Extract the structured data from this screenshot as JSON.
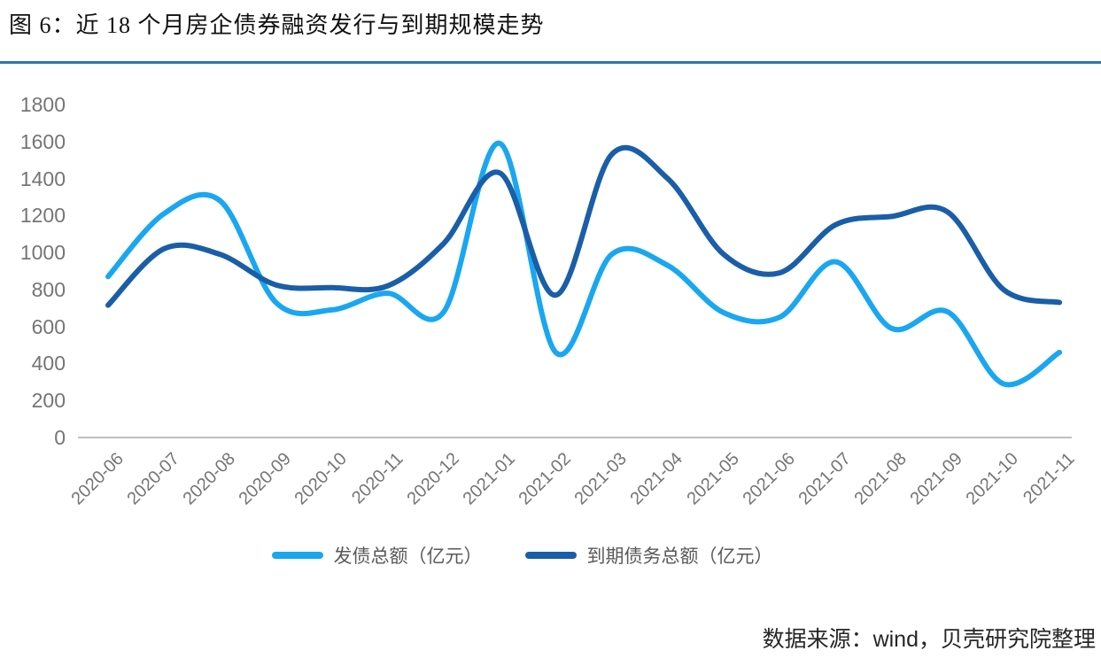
{
  "title": "图 6：近 18 个月房企债券融资发行与到期规模走势",
  "source": "数据来源：wind，贝壳研究院整理",
  "accent_rule_color": "#2E74B5",
  "chart_data": {
    "type": "line",
    "title": "近18个月房企债券融资发行与到期规模走势",
    "xlabel": "",
    "ylabel": "亿元",
    "ylim": [
      0,
      1800
    ],
    "ytick_step": 200,
    "yticks": [
      1800,
      1600,
      1400,
      1200,
      1000,
      800,
      600,
      400,
      200,
      0
    ],
    "grid": false,
    "legend_position": "bottom",
    "axis_color": "#BFBFBF",
    "tick_label_color": "#757575",
    "smooth": true,
    "categories": [
      "2020-06",
      "2020-07",
      "2020-08",
      "2020-09",
      "2020-10",
      "2020-11",
      "2020-12",
      "2021-01",
      "2021-02",
      "2021-03",
      "2021-04",
      "2021-05",
      "2021-06",
      "2021-07",
      "2021-08",
      "2021-09",
      "2021-10",
      "2021-11"
    ],
    "series": [
      {
        "name": "发债总额（亿元）",
        "color": "#1AA7F0",
        "values": [
          870,
          1210,
          1280,
          730,
          690,
          780,
          680,
          1590,
          460,
          990,
          930,
          675,
          650,
          950,
          590,
          680,
          290,
          460
        ]
      },
      {
        "name": "到期债务总额（亿元）",
        "color": "#1A5EA8",
        "values": [
          715,
          1020,
          990,
          825,
          810,
          820,
          1050,
          1430,
          770,
          1530,
          1400,
          990,
          890,
          1150,
          1195,
          1220,
          800,
          730
        ]
      }
    ]
  }
}
